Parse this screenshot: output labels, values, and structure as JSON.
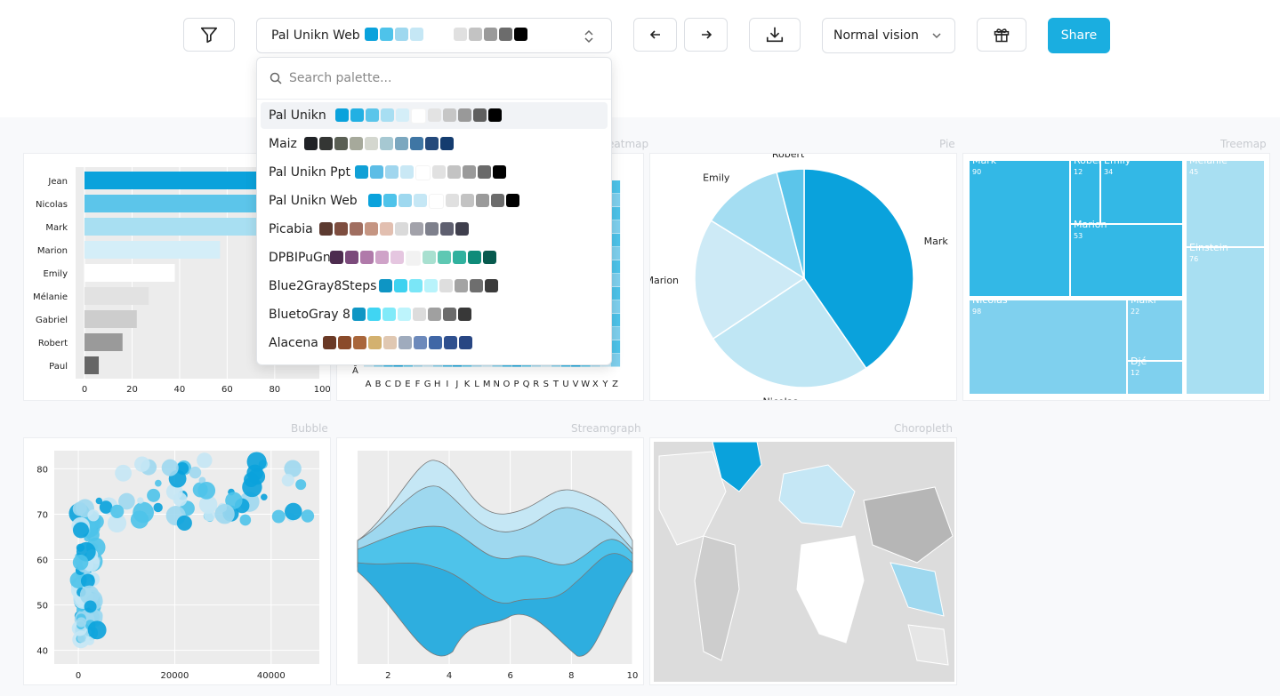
{
  "toolbar": {
    "selected_palette": "Pal Unikn Web",
    "selected_swatches": [
      "#0aa2dc",
      "#4ec3ea",
      "#9ed8ef",
      "#c5e7f5",
      "#ffffff",
      "#e0e0e0",
      "#c3c3c3",
      "#9a9a9a",
      "#6c6c6c",
      "#000000"
    ],
    "vision_label": "Normal vision",
    "share_label": "Share"
  },
  "search": {
    "placeholder": "Search palette..."
  },
  "palettes": [
    {
      "name": "Pal Unikn",
      "colors": [
        "#0aa2dc",
        "#22b0e3",
        "#5bc5ea",
        "#a7def2",
        "#d4eef8",
        "#ffffff",
        "#e3e3e3",
        "#c6c6c6",
        "#999999",
        "#5f5f5f",
        "#000000"
      ]
    },
    {
      "name": "Maiz",
      "colors": [
        "#202226",
        "#343634",
        "#5a5f54",
        "#a6a99b",
        "#d4d7cf",
        "#a6c8d2",
        "#7ba7bf",
        "#3f76a4",
        "#24497b",
        "#143c6f"
      ]
    },
    {
      "name": "Pal Unikn Ppt",
      "colors": [
        "#10a0d6",
        "#5cbde6",
        "#a0d6ee",
        "#c9e8f5",
        "#ffffff",
        "#e1e1e1",
        "#c3c3c3",
        "#9a9a9a",
        "#6a6a6a",
        "#000000"
      ]
    },
    {
      "name": "Pal Unikn Web",
      "colors": [
        "#0aa2dc",
        "#4ec3ea",
        "#9ed8ef",
        "#c5e7f5",
        "#ffffff",
        "#e0e0e0",
        "#c3c3c3",
        "#9a9a9a",
        "#6c6c6c",
        "#000000"
      ]
    },
    {
      "name": "Picabia",
      "colors": [
        "#5c3a30",
        "#7e4d3f",
        "#a06e60",
        "#c59582",
        "#e2bfb0",
        "#dadada",
        "#a2a2aa",
        "#7e808c",
        "#5f6070",
        "#3f3f4d"
      ]
    },
    {
      "name": "DPBIPuGn",
      "colors": [
        "#4d2c4f",
        "#7b4a7b",
        "#b07aaa",
        "#cfa3c8",
        "#e5c6e0",
        "#f2f2f2",
        "#a8e0d0",
        "#5ec8b3",
        "#30b19e",
        "#0f8b79",
        "#075a4e"
      ]
    },
    {
      "name": "Blue2Gray8Steps",
      "colors": [
        "#0e95c4",
        "#3ed2f0",
        "#7ae6f7",
        "#b8f3fb",
        "#dedede",
        "#a3a3a3",
        "#6e6e6e",
        "#3b3b3b"
      ]
    },
    {
      "name": "BluetoGray 8",
      "colors": [
        "#0f96c4",
        "#40d5f3",
        "#80eaf9",
        "#bdf4fc",
        "#dcdcdc",
        "#a0a0a0",
        "#6b6b6b",
        "#383838"
      ]
    },
    {
      "name": "Alacena",
      "colors": [
        "#6b3a26",
        "#8a4b2b",
        "#a9663b",
        "#d3b16f",
        "#e0c8b2",
        "#9fabbd",
        "#6c89bb",
        "#4067a6",
        "#2f508f",
        "#284683"
      ]
    }
  ],
  "cards": {
    "heatmap": "Heatmap",
    "pie": "Pie",
    "treemap": "Treemap",
    "bubble": "Bubble",
    "streamgraph": "Streamgraph",
    "choropleth": "Choropleth"
  },
  "chart_data": [
    {
      "type": "bar",
      "orientation": "horizontal",
      "categories": [
        "Jean",
        "Nicolas",
        "Mark",
        "Marion",
        "Emily",
        "Mélanie",
        "Gabriel",
        "Robert",
        "Paul"
      ],
      "values": [
        99,
        98,
        90,
        57,
        38,
        27,
        22,
        16,
        6
      ],
      "colors": [
        "#0aa2dc",
        "#5cc5ea",
        "#a8dff2",
        "#d4eef8",
        "#ffffff",
        "#e2e2e2",
        "#cdcdcd",
        "#9a9a9a",
        "#666666"
      ],
      "xticks": [
        0,
        20,
        40,
        60,
        80,
        100
      ],
      "xlim": [
        0,
        113
      ]
    },
    {
      "type": "heatmap",
      "title": "Heatmap",
      "xlabels": [
        "A",
        "B",
        "C",
        "D",
        "E",
        "F",
        "G",
        "H",
        "I",
        "J",
        "K",
        "L",
        "M",
        "N",
        "O",
        "P",
        "Q",
        "R",
        "S",
        "T",
        "U",
        "V",
        "W",
        "X",
        "Y",
        "Z"
      ],
      "ylabels": [
        "Ā"
      ]
    },
    {
      "type": "pie",
      "title": "Pie",
      "labels": [
        "Mark",
        "Nicolas",
        "Marion",
        "Emily",
        "Robert"
      ],
      "values": [
        40,
        25,
        18,
        12,
        4
      ],
      "colors": [
        "#0aa2dc",
        "#bfe6f4",
        "#cdeaf6",
        "#a4ddf2",
        "#5cc5ea"
      ]
    },
    {
      "type": "treemap",
      "title": "Treemap",
      "items": [
        {
          "label": "Mark",
          "value": 90
        },
        {
          "label": "Robert",
          "value": 12
        },
        {
          "label": "Emily",
          "value": 34
        },
        {
          "label": "Marion",
          "value": 53
        },
        {
          "label": "Nicolas",
          "value": 98
        },
        {
          "label": "Malki",
          "value": 22
        },
        {
          "label": "Djé",
          "value": 12
        },
        {
          "label": "Mélanie",
          "value": 45
        },
        {
          "label": "Einstein",
          "value": 76
        }
      ]
    },
    {
      "type": "scatter",
      "title": "Bubble",
      "xticks": [
        0,
        20000,
        40000
      ],
      "yticks": [
        40,
        50,
        60,
        70,
        80
      ],
      "xlim": [
        -5000,
        50000
      ],
      "ylim": [
        37,
        84
      ]
    },
    {
      "type": "area",
      "title": "Streamgraph",
      "xticks": [
        2,
        4,
        6,
        8,
        10
      ],
      "xlim": [
        1,
        10
      ]
    },
    {
      "type": "heatmap",
      "title": "Choropleth"
    }
  ]
}
